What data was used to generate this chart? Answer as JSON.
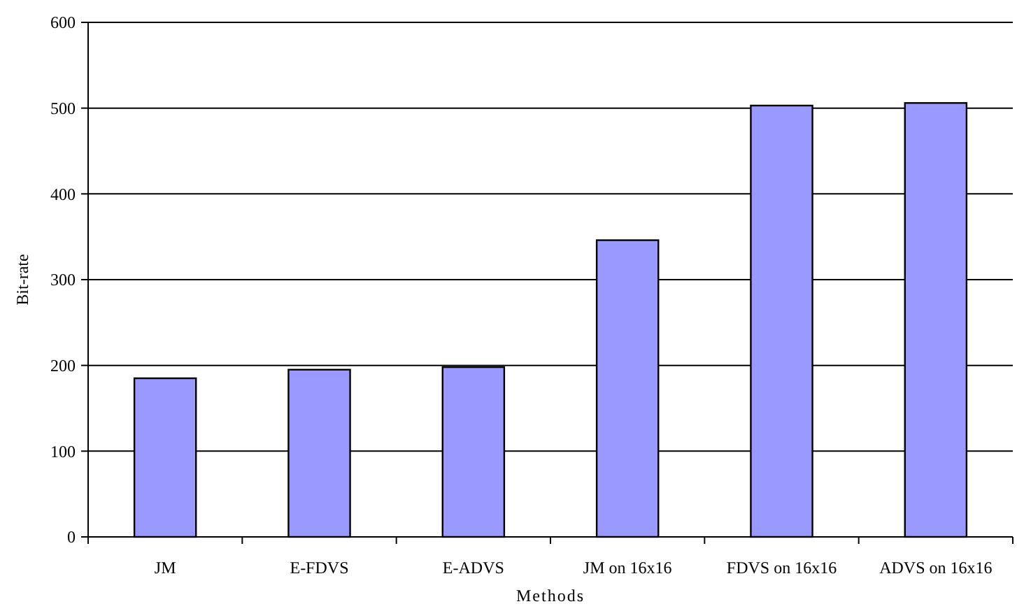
{
  "chart_data": {
    "type": "bar",
    "xlabel": "Methods",
    "ylabel": "Bit-rate",
    "categories": [
      "JM",
      "E-FDVS",
      "E-ADVS",
      "JM on 16x16",
      "FDVS on 16x16",
      "ADVS on 16x16"
    ],
    "values": [
      185,
      195,
      198,
      346,
      503,
      506
    ],
    "color": "#9999ff",
    "ylim": [
      0,
      600
    ],
    "yticks": [
      0,
      100,
      200,
      300,
      400,
      500,
      600
    ],
    "grid": "y"
  }
}
